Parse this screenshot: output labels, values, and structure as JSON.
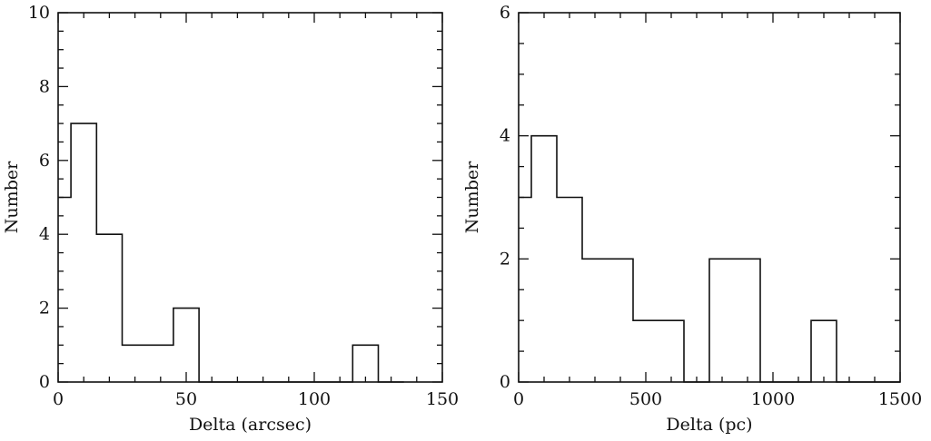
{
  "chart_data": [
    {
      "type": "histogram",
      "xlabel": "Delta (arcsec)",
      "ylabel": "Number",
      "xlim": [
        0,
        150
      ],
      "ylim": [
        0,
        10
      ],
      "xticks": [
        0,
        50,
        100,
        150
      ],
      "yticks": [
        0,
        2,
        4,
        6,
        8,
        10
      ],
      "x_minor_step": 10,
      "y_minor_step": 0.5,
      "bin_width": 10,
      "bin_left_edges": [
        -5,
        5,
        15,
        25,
        35,
        45,
        55,
        65,
        75,
        85,
        95,
        105,
        115,
        125
      ],
      "counts": [
        5,
        7,
        4,
        1,
        1,
        2,
        0,
        0,
        0,
        0,
        0,
        0,
        1,
        0
      ],
      "grid": false
    },
    {
      "type": "histogram",
      "xlabel": "Delta (pc)",
      "ylabel": "Number",
      "xlim": [
        0,
        1500
      ],
      "ylim": [
        0,
        6
      ],
      "xticks": [
        0,
        500,
        1000,
        1500
      ],
      "yticks": [
        0,
        2,
        4,
        6
      ],
      "x_minor_step": 100,
      "y_minor_step": 0.5,
      "bin_width": 100,
      "bin_left_edges": [
        -50,
        50,
        150,
        250,
        350,
        450,
        550,
        650,
        750,
        850,
        950,
        1050,
        1150,
        1250,
        1350,
        1450
      ],
      "counts": [
        3,
        4,
        3,
        2,
        2,
        1,
        1,
        0,
        2,
        2,
        0,
        0,
        1,
        0,
        0,
        0
      ],
      "grid": false
    }
  ]
}
